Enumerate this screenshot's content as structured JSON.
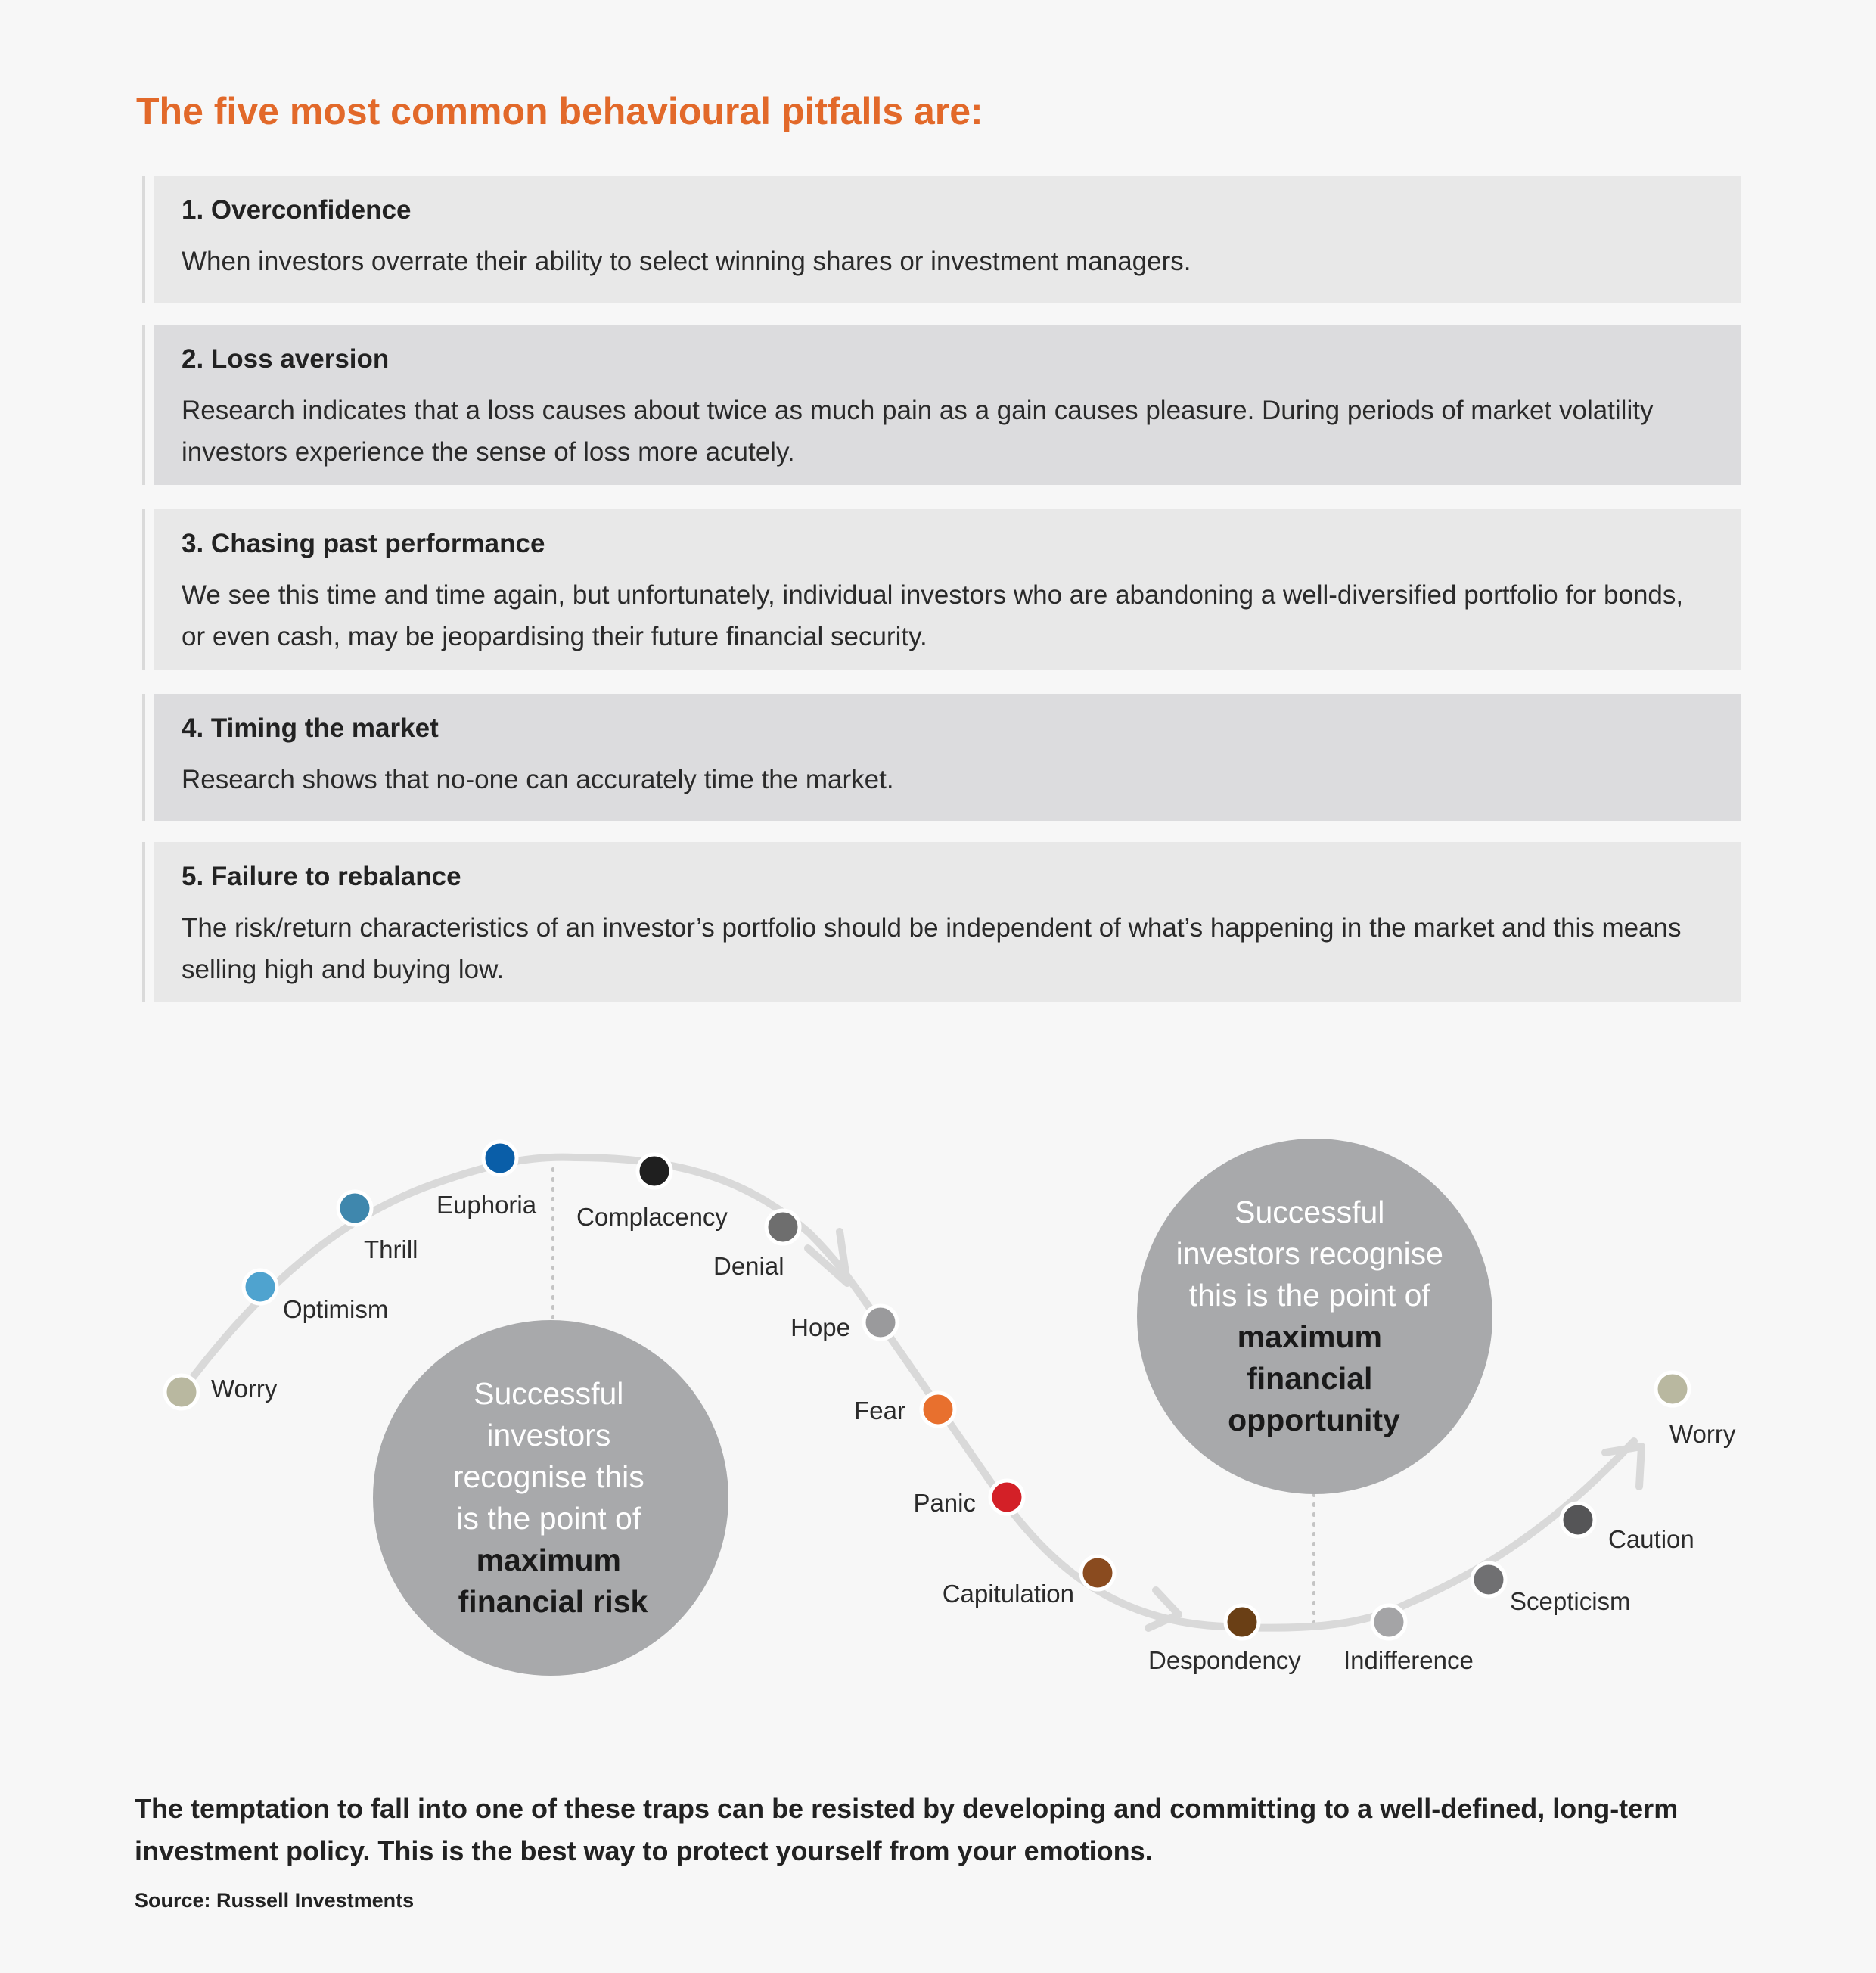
{
  "heading": "The five most common behavioural pitfalls are:",
  "pitfalls": [
    {
      "title": "1. Overconfidence",
      "text": "When investors overrate their ability to select winning shares or investment managers."
    },
    {
      "title": "2. Loss aversion",
      "text": "Research indicates that a loss causes about twice as much pain as a gain causes pleasure. During periods of market volatility investors experience the sense of loss more acutely."
    },
    {
      "title": "3. Chasing past performance",
      "text": "We see this time and time again, but unfortunately, individual investors who are abandoning a well-diversified portfolio for bonds, or even cash, may be jeopardising their future financial security."
    },
    {
      "title": "4. Timing the market",
      "text": "Research shows that no-one can accurately time the market."
    },
    {
      "title": "5. Failure to rebalance",
      "text": "The risk/return characteristics of an investor’s portfolio should be independent of what’s happening in the market and this means selling high and buying low."
    }
  ],
  "cycle": {
    "emotions": [
      {
        "label": "Worry",
        "color": "#b9b8a0"
      },
      {
        "label": "Optimism",
        "color": "#4fa3cf"
      },
      {
        "label": "Thrill",
        "color": "#3f87ad"
      },
      {
        "label": "Euphoria",
        "color": "#0a5ea8"
      },
      {
        "label": "Complacency",
        "color": "#1f1f1f"
      },
      {
        "label": "Denial",
        "color": "#6e6e6e"
      },
      {
        "label": "Hope",
        "color": "#9a9a9c"
      },
      {
        "label": "Fear",
        "color": "#e8702e"
      },
      {
        "label": "Panic",
        "color": "#d32027"
      },
      {
        "label": "Capitulation",
        "color": "#8a4b1f"
      },
      {
        "label": "Despondency",
        "color": "#6a3f15"
      },
      {
        "label": "Indifference",
        "color": "#a4a4a6"
      },
      {
        "label": "Scepticism",
        "color": "#707072"
      },
      {
        "label": "Caution",
        "color": "#555557"
      },
      {
        "label": "Worry",
        "color": "#b9b8a0"
      }
    ],
    "risk_callout": {
      "lines": [
        "Successful",
        "investors",
        "recognise this",
        "is the point of"
      ],
      "bold_lines": [
        "maximum",
        "financial risk"
      ]
    },
    "opportunity_callout": {
      "lines": [
        "Successful",
        "investors recognise",
        "this is the point of"
      ],
      "bold_lines": [
        "maximum",
        "financial",
        "opportunity"
      ]
    }
  },
  "footer": "The temptation to fall into one of these traps can be resisted by developing and committing to a well-defined, long-term investment policy. This is the best way to protect yourself from your emotions.",
  "source": "Source: Russell Investments"
}
